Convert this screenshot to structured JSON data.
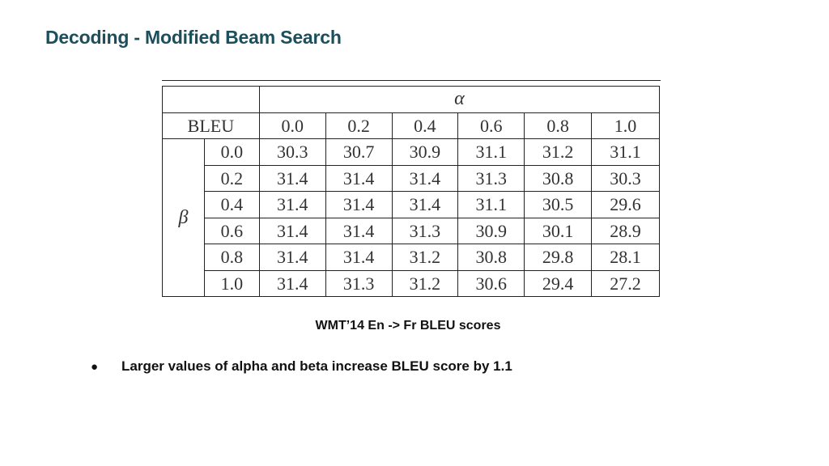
{
  "slide": {
    "title": "Decoding - Modified Beam Search"
  },
  "table": {
    "corner_label": "BLEU",
    "alpha_symbol": "α",
    "beta_symbol": "β",
    "alpha_values": [
      "0.0",
      "0.2",
      "0.4",
      "0.6",
      "0.8",
      "1.0"
    ],
    "rows": [
      {
        "beta": "0.0",
        "cells": [
          "30.3",
          "30.7",
          "30.9",
          "31.1",
          "31.2",
          "31.1"
        ]
      },
      {
        "beta": "0.2",
        "cells": [
          "31.4",
          "31.4",
          "31.4",
          "31.3",
          "30.8",
          "30.3"
        ]
      },
      {
        "beta": "0.4",
        "cells": [
          "31.4",
          "31.4",
          "31.4",
          "31.1",
          "30.5",
          "29.6"
        ]
      },
      {
        "beta": "0.6",
        "cells": [
          "31.4",
          "31.4",
          "31.3",
          "30.9",
          "30.1",
          "28.9"
        ]
      },
      {
        "beta": "0.8",
        "cells": [
          "31.4",
          "31.4",
          "31.2",
          "30.8",
          "29.8",
          "28.1"
        ]
      },
      {
        "beta": "1.0",
        "cells": [
          "31.4",
          "31.3",
          "31.2",
          "30.6",
          "29.4",
          "27.2"
        ]
      }
    ]
  },
  "caption": "WMT’14 En -> Fr BLEU scores",
  "bullets": [
    {
      "marker": "●",
      "text": "Larger values of alpha and beta increase BLEU score by 1.1"
    }
  ]
}
